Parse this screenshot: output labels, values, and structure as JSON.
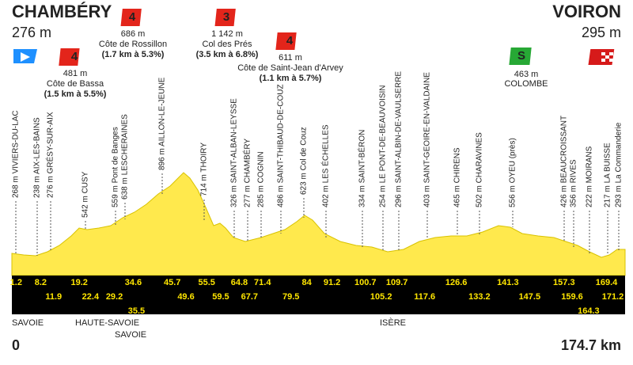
{
  "start": {
    "name": "CHAMBÉRY",
    "altitude": "276 m"
  },
  "finish": {
    "name": "VOIRON",
    "altitude": "295 m"
  },
  "climbs": [
    {
      "category": 4,
      "altitude": "481 m",
      "name": "Côte de Bassa",
      "detail": "(1.5 km à 5.5%)"
    },
    {
      "category": 4,
      "altitude": "686 m",
      "name": "Côte de Rossillon",
      "detail": "(1.7 km à 5.3%)"
    },
    {
      "category": 3,
      "altitude": "1 142 m",
      "name": "Col des Prés",
      "detail": "(3.5 km à 6.8%)"
    },
    {
      "category": 4,
      "altitude": "611 m",
      "name": "Côte de Saint-Jean d'Arvey",
      "detail": "(1.1 km à 5.7%)"
    }
  ],
  "sprint": {
    "badge": "S",
    "altitude": "463 m",
    "name": "COLOMBE"
  },
  "places": [
    "268 m VIVIERS-DU-LAC",
    "238 m AIX-LES-BAINS",
    "276 m GRÉSY-SUR-AIX",
    "542 m CUSY",
    "559 m Pont de Banges",
    "638 m LESCHERAINES",
    "896 m AILLON-LE-JEUNE",
    "714 m THOIRY",
    "326 m SAINT-ALBAN-LEYSSE",
    "277 m CHAMBÉRY",
    "285 m COGNIN",
    "486 m SAINT-THIBAUD-DE-COUZ",
    "623 m Col de Couz",
    "402 m LES ÉCHELLES",
    "334 m SAINT-BÉRON",
    "254 m LE PONT-DE-BEAUVOISIN",
    "296 m SAINT-ALBIN-DE-VAULSERRE",
    "403 m SAINT-GEOIRE-EN-VALDAINE",
    "465 m CHIRENS",
    "502 m CHARAVINES",
    "556 m OYEU (près)",
    "426 m BEAUCROISSANT",
    "356 m RIVES",
    "222 m MOIRANS",
    "217 m LA BUISSE",
    "293 m La Commanderie"
  ],
  "km_markers": [
    1.2,
    8.2,
    11.9,
    19.2,
    22.4,
    29.2,
    34.6,
    35.5,
    45.7,
    49.6,
    55.5,
    59.5,
    64.8,
    67.7,
    71.4,
    79.5,
    84,
    91.2,
    100.7,
    105.2,
    109.7,
    117.6,
    126.6,
    133.2,
    141.3,
    147.5,
    157.3,
    159.6,
    164.3,
    169.4,
    171.2
  ],
  "regions": [
    "SAVOIE",
    "HAUTE-SAVOIE",
    "SAVOIE",
    "ISÈRE"
  ],
  "distance_start": 0,
  "distance_total": {
    "value": 174.7,
    "label": "174.7 km"
  }
}
